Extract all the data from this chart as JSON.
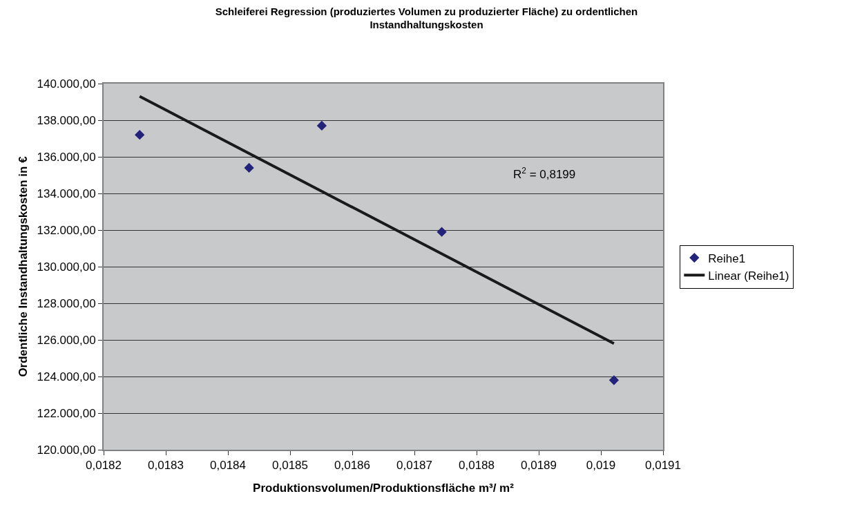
{
  "chart_data": {
    "type": "scatter",
    "title": "Schleiferei Regression (produziertes Volumen zu produzierter Fläche) zu ordentlichen Instandhaltungskosten",
    "xlabel": "Produktionsvolumen/Produktionsfläche m³/ m²",
    "ylabel": "Ordentliche Instandhaltungskosten in €",
    "series": [
      {
        "name": "Reihe1",
        "marker": "diamond",
        "color": "#23237a",
        "x": [
          0.018258,
          0.018434,
          0.018551,
          0.018744,
          0.019021
        ],
        "values": [
          137200,
          135400,
          137700,
          131900,
          123800
        ]
      },
      {
        "name": "Linear (Reihe1)",
        "type": "line",
        "marker": "none",
        "color": "#1a1a1a",
        "x": [
          0.018258,
          0.019021
        ],
        "values": [
          139300,
          125800
        ]
      }
    ],
    "annotations": [
      "R$^{2}$ = 0,8199"
    ],
    "xlim": [
      0.0182,
      0.0191
    ],
    "xticks": [
      {
        "value": 0.0182,
        "label": "0,0182"
      },
      {
        "value": 0.0183,
        "label": "0,0183"
      },
      {
        "value": 0.0184,
        "label": "0,0184"
      },
      {
        "value": 0.0185,
        "label": "0,0185"
      },
      {
        "value": 0.0186,
        "label": "0,0186"
      },
      {
        "value": 0.0187,
        "label": "0,0187"
      },
      {
        "value": 0.0188,
        "label": "0,0188"
      },
      {
        "value": 0.0189,
        "label": "0,0189"
      },
      {
        "value": 0.019,
        "label": "0,019"
      },
      {
        "value": 0.0191,
        "label": "0,0191"
      }
    ],
    "ylim": [
      120000,
      140000
    ],
    "yticks": [
      {
        "value": 120000,
        "label": "120.000,00"
      },
      {
        "value": 122000,
        "label": "122.000,00"
      },
      {
        "value": 124000,
        "label": "124.000,00"
      },
      {
        "value": 126000,
        "label": "126.000,00"
      },
      {
        "value": 128000,
        "label": "128.000,00"
      },
      {
        "value": 130000,
        "label": "130.000,00"
      },
      {
        "value": 132000,
        "label": "132.000,00"
      },
      {
        "value": 134000,
        "label": "134.000,00"
      },
      {
        "value": 136000,
        "label": "136.000,00"
      },
      {
        "value": 138000,
        "label": "138.000,00"
      },
      {
        "value": 140000,
        "label": "140.000,00"
      }
    ],
    "grid": "y",
    "legend": "right",
    "line_style": "solid"
  }
}
